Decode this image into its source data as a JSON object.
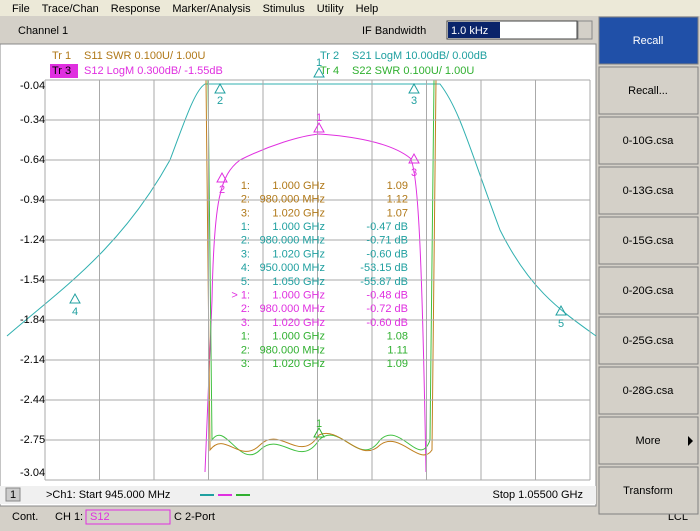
{
  "menu": [
    "File",
    "Trace/Chan",
    "Response",
    "Marker/Analysis",
    "Stimulus",
    "Utility",
    "Help"
  ],
  "toolbar": {
    "channel": "Channel 1",
    "if_label": "IF Bandwidth",
    "if_value": "1.0 kHz"
  },
  "traces": [
    {
      "id": "Tr 1",
      "text": "S11 SWR 0.100U/  1.00U"
    },
    {
      "id": "Tr 3",
      "text": "S12 LogM 0.300dB/ -1.55dB"
    },
    {
      "id": "Tr 2",
      "text": "S21 LogM 10.00dB/  0.00dB"
    },
    {
      "id": "Tr 4",
      "text": "S22 SWR 0.100U/  1.00U"
    }
  ],
  "y_axis_labels": [
    "-0.04",
    "-0.34",
    "-0.64",
    "-0.94",
    "-1.24",
    "-1.54",
    "-1.84",
    "-2.14",
    "-2.44",
    "-2.75",
    "-3.04"
  ],
  "marker_table": [
    [
      "1:",
      "1.000 GHz",
      "1.09"
    ],
    [
      "2:",
      "980.000 MHz",
      "1.12"
    ],
    [
      "3:",
      "1.020 GHz",
      "1.07"
    ],
    [
      "1:",
      "1.000 GHz",
      "-0.47 dB"
    ],
    [
      "2:",
      "980.000 MHz",
      "-0.71 dB"
    ],
    [
      "3:",
      "1.020 GHz",
      "-0.60 dB"
    ],
    [
      "4:",
      "950.000 MHz",
      "-53.15 dB"
    ],
    [
      "5:",
      "1.050 GHz",
      "-55.87 dB"
    ],
    [
      "> 1:",
      "1.000 GHz",
      "-0.48 dB"
    ],
    [
      "2:",
      "980.000 MHz",
      "-0.72 dB"
    ],
    [
      "3:",
      "1.020 GHz",
      "-0.60 dB"
    ],
    [
      "1:",
      "1.000 GHz",
      "1.08"
    ],
    [
      "2:",
      "980.000 MHz",
      "1.11"
    ],
    [
      "3:",
      "1.020 GHz",
      "1.09"
    ]
  ],
  "plot_markers": [
    "1",
    "2",
    "3",
    "4",
    "5",
    "1",
    "2",
    "3",
    "1"
  ],
  "footer": {
    "channel_num": "1",
    "start": ">Ch1: Start  945.000 MHz",
    "stop": "Stop  1.05500 GHz"
  },
  "status": [
    "Cont.",
    "CH 1:",
    "S12",
    "C  2-Port",
    "LCL"
  ],
  "softkeys": [
    "Recall",
    "Recall...",
    "0-10G.csa",
    "0-13G.csa",
    "0-15G.csa",
    "0-20G.csa",
    "0-25G.csa",
    "0-28G.csa",
    "More",
    "Transform"
  ]
}
